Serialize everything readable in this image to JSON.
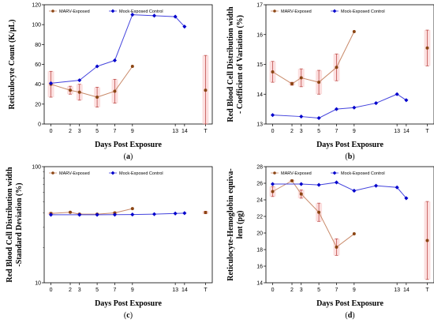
{
  "colors": {
    "marv": "#8B4513",
    "marv_line": "#C98A6A",
    "mock": "#0000CC",
    "mock_line": "#4444DD",
    "err": "#C0504D",
    "blur": "#F9C5C5"
  },
  "chart_data": [
    {
      "type": "line",
      "panel": "(a)",
      "ylabel": "Reticulocyte Count (K/μL)",
      "xlabel": "Days Post Exposure",
      "ylim": [
        0,
        120
      ],
      "yticks": [
        0,
        20,
        40,
        60,
        80,
        100,
        120
      ],
      "xticks": [
        "0",
        "2",
        "3",
        "5",
        "7",
        "9",
        "13",
        "14",
        "T"
      ],
      "legend": "top-left",
      "series": [
        {
          "name": "MARV-Exposed",
          "x": [
            0,
            2,
            3,
            5,
            7,
            9
          ],
          "y": [
            40,
            34,
            32,
            27,
            33,
            58
          ],
          "err": [
            13,
            4,
            8,
            10,
            12,
            0
          ]
        },
        {
          "name": "Mock-Exposed Control",
          "x": [
            0,
            3,
            5,
            7,
            9,
            11,
            13,
            14
          ],
          "y": [
            41,
            44,
            58,
            64,
            110,
            109,
            108,
            98
          ]
        },
        {
          "name": "MARV-Exposed",
          "x": [
            "T"
          ],
          "y": [
            34
          ],
          "err": [
            35
          ]
        }
      ]
    },
    {
      "type": "line",
      "panel": "(b)",
      "ylabel": "Red Blood Cell Distribution width - Coefficient of Variation (%)",
      "xlabel": "Days Post Exposure",
      "ylim": [
        13,
        17
      ],
      "yticks": [
        13,
        14,
        15,
        16,
        17
      ],
      "xticks": [
        "0",
        "2",
        "3",
        "5",
        "7",
        "9",
        "13",
        "14",
        "T"
      ],
      "legend": "top-left",
      "series": [
        {
          "name": "MARV-Exposed",
          "x": [
            0,
            2,
            3,
            5,
            7,
            9
          ],
          "y": [
            14.75,
            14.35,
            14.55,
            14.4,
            14.9,
            16.1
          ],
          "err": [
            0.35,
            0.05,
            0.3,
            0.4,
            0.45,
            0
          ]
        },
        {
          "name": "Mock-Exposed Control",
          "x": [
            0,
            3,
            5,
            7,
            9,
            11,
            13,
            14
          ],
          "y": [
            13.3,
            13.25,
            13.2,
            13.5,
            13.55,
            13.7,
            14.0,
            13.8
          ]
        },
        {
          "name": "MARV-Exposed",
          "x": [
            "T"
          ],
          "y": [
            15.55
          ],
          "err": [
            0.6
          ]
        }
      ]
    },
    {
      "type": "line",
      "panel": "(c)",
      "ylabel": "Red Blood Cell Distribution width -Standard Deviation (%)",
      "xlabel": "Days Post Exposure",
      "scale": "log",
      "ylim": [
        10,
        100
      ],
      "yticks": [
        10,
        100
      ],
      "xticks": [
        "0",
        "2",
        "3",
        "5",
        "7",
        "9",
        "13",
        "14",
        "T"
      ],
      "legend": "top-left",
      "series": [
        {
          "name": "MARV-Exposed",
          "x": [
            0,
            2,
            3,
            5,
            7,
            9
          ],
          "y": [
            39.5,
            40.5,
            39.0,
            39.0,
            40.0,
            43.5
          ],
          "err": [
            0.8,
            0.3,
            0.5,
            0.4,
            0.6,
            0
          ]
        },
        {
          "name": "Mock-Exposed Control",
          "x": [
            0,
            3,
            5,
            7,
            9,
            11,
            13,
            14
          ],
          "y": [
            38.5,
            38.5,
            38.5,
            38.6,
            38.7,
            39.0,
            39.5,
            39.8
          ]
        },
        {
          "name": "MARV-Exposed",
          "x": [
            "T"
          ],
          "y": [
            40.3
          ],
          "err": [
            1.0
          ]
        }
      ]
    },
    {
      "type": "line",
      "panel": "(d)",
      "ylabel": "Reticulocyte-Hemoglobin equiva-lent (pg)",
      "xlabel": "Days Post Exposure",
      "ylim": [
        14,
        28
      ],
      "yticks": [
        14,
        16,
        18,
        20,
        22,
        24,
        26,
        28
      ],
      "xticks": [
        "0",
        "2",
        "3",
        "5",
        "7",
        "9",
        "13",
        "14",
        "T"
      ],
      "legend": "top-left",
      "series": [
        {
          "name": "MARV-Exposed",
          "x": [
            0,
            2,
            3,
            5,
            7,
            9
          ],
          "y": [
            25.0,
            26.3,
            24.7,
            22.5,
            18.3,
            19.9
          ],
          "err": [
            0.6,
            0.1,
            0.5,
            1.1,
            1.0,
            0
          ]
        },
        {
          "name": "Mock-Exposed Control",
          "x": [
            0,
            3,
            5,
            7,
            9,
            11,
            13,
            14
          ],
          "y": [
            25.9,
            25.9,
            25.8,
            26.1,
            25.1,
            25.7,
            25.5,
            24.2
          ]
        },
        {
          "name": "MARV-Exposed",
          "x": [
            "T"
          ],
          "y": [
            19.1
          ],
          "err": [
            4.7
          ]
        }
      ]
    }
  ]
}
